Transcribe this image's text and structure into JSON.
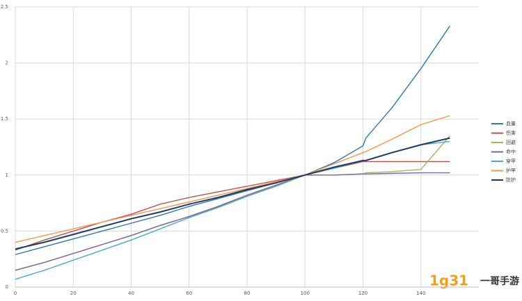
{
  "chart_data": {
    "type": "line",
    "x": [
      0,
      10,
      20,
      30,
      40,
      50,
      60,
      70,
      80,
      90,
      100,
      110,
      120,
      121,
      130,
      140,
      150
    ],
    "series": [
      {
        "name": "血量",
        "color": "#2e75b6",
        "values": [
          0.29,
          0.36,
          0.43,
          0.5,
          0.57,
          0.64,
          0.72,
          0.79,
          0.86,
          0.93,
          1,
          1.11,
          1.26,
          1.33,
          1.6,
          1.95,
          2.33
        ]
      },
      {
        "name": "伤害",
        "color": "#c0504d",
        "values": [
          0.33,
          0.42,
          0.5,
          0.58,
          0.65,
          0.74,
          0.8,
          0.85,
          0.9,
          0.95,
          1,
          1.06,
          1.12,
          1.12,
          1.12,
          1.12,
          1.12
        ]
      },
      {
        "name": "回避",
        "color": "#9bbb59",
        "values": [
          0.15,
          0.22,
          0.3,
          0.38,
          0.46,
          0.55,
          0.63,
          0.72,
          0.82,
          0.91,
          1,
          1,
          1.01,
          1.02,
          1.03,
          1.05,
          1.35
        ]
      },
      {
        "name": "命中",
        "color": "#8064a2",
        "values": [
          0.15,
          0.22,
          0.3,
          0.38,
          0.46,
          0.55,
          0.63,
          0.72,
          0.82,
          0.91,
          1,
          1,
          1.01,
          1.01,
          1.015,
          1.02,
          1.02
        ]
      },
      {
        "name": "穿甲",
        "color": "#4bacc6",
        "values": [
          0.07,
          0.15,
          0.24,
          0.33,
          0.42,
          0.52,
          0.62,
          0.71,
          0.81,
          0.9,
          1,
          1.06,
          1.13,
          1.13,
          1.2,
          1.27,
          1.3
        ]
      },
      {
        "name": "护甲",
        "color": "#f79646",
        "values": [
          0.4,
          0.46,
          0.52,
          0.58,
          0.64,
          0.7,
          0.76,
          0.82,
          0.88,
          0.94,
          1,
          1.1,
          1.2,
          1.21,
          1.32,
          1.45,
          1.53
        ]
      },
      {
        "name": "防护",
        "color": "#1f3864",
        "values": [
          0.34,
          0.4,
          0.47,
          0.54,
          0.61,
          0.67,
          0.74,
          0.8,
          0.87,
          0.93,
          1,
          1.07,
          1.13,
          1.13,
          1.2,
          1.27,
          1.33
        ]
      }
    ],
    "xlim": [
      0,
      160
    ],
    "xticks": [
      0,
      20,
      40,
      60,
      80,
      100,
      120,
      140
    ],
    "ylim": [
      0,
      2.5
    ],
    "yticks": [
      0,
      0.5,
      1,
      1.5,
      2,
      2.5
    ],
    "grid": true,
    "legend": "right"
  },
  "watermark": {
    "logo": "1g31",
    "name": "一哥手游"
  }
}
